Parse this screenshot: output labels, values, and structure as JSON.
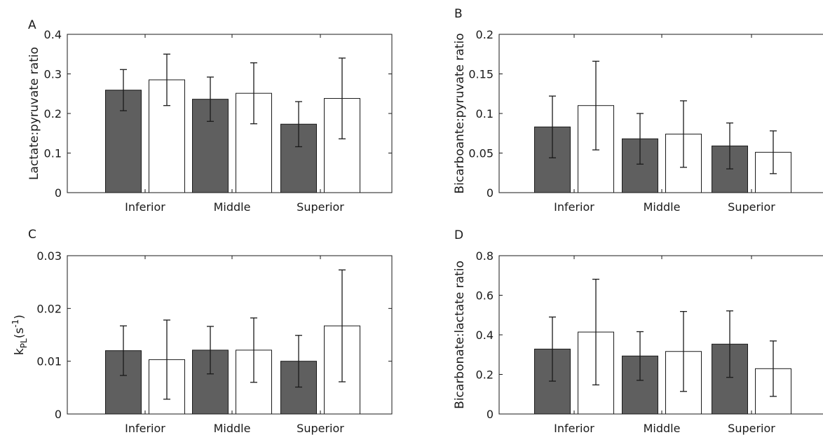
{
  "colors": {
    "group1": "#5f5f5f",
    "group2": "#ffffff",
    "stroke": "#1a1a1a"
  },
  "chart_data": [
    {
      "panel": "A",
      "type": "bar",
      "ylabel": "Lactate:pyruvate ratio",
      "ylim": [
        0,
        0.4
      ],
      "yticks": [
        "0",
        "0.1",
        "0.2",
        "0.3",
        "0.4"
      ],
      "categories": [
        "Inferior",
        "Middle",
        "Superior"
      ],
      "series": [
        {
          "values": [
            0.259,
            0.236,
            0.173
          ],
          "error": [
            0.052,
            0.056,
            0.057
          ]
        },
        {
          "values": [
            0.285,
            0.251,
            0.238
          ],
          "error": [
            0.065,
            0.077,
            0.102
          ]
        }
      ]
    },
    {
      "panel": "B",
      "type": "bar",
      "ylabel": "Bicarboante:pyruvate ratio",
      "ylim": [
        0,
        0.2
      ],
      "yticks": [
        "0",
        "0.05",
        "0.1",
        "0.15",
        "0.2"
      ],
      "categories": [
        "Inferior",
        "Middle",
        "Superior"
      ],
      "series": [
        {
          "values": [
            0.083,
            0.068,
            0.059
          ],
          "error": [
            0.039,
            0.032,
            0.029
          ]
        },
        {
          "values": [
            0.11,
            0.074,
            0.051
          ],
          "error": [
            0.056,
            0.042,
            0.027
          ]
        }
      ]
    },
    {
      "panel": "C",
      "type": "bar",
      "ylabel_main": "k",
      "ylabel_sub": "PL",
      "ylabel_rest": "(s",
      "ylabel_sup": "-1",
      "ylabel_close": ")",
      "ylim": [
        0,
        0.03
      ],
      "yticks": [
        "0",
        "0.01",
        "0.02",
        "0.03"
      ],
      "categories": [
        "Inferior",
        "Middle",
        "Superior"
      ],
      "series": [
        {
          "values": [
            0.012,
            0.0121,
            0.01
          ],
          "error": [
            0.0047,
            0.0045,
            0.0049
          ]
        },
        {
          "values": [
            0.0103,
            0.0121,
            0.0167
          ],
          "error": [
            0.0075,
            0.0061,
            0.0106
          ]
        }
      ]
    },
    {
      "panel": "D",
      "type": "bar",
      "ylabel": "Bicarbonate:lactate ratio",
      "ylim": [
        0,
        0.8
      ],
      "yticks": [
        "0",
        "0.2",
        "0.4",
        "0.6",
        "0.8"
      ],
      "categories": [
        "Inferior",
        "Middle",
        "Superior"
      ],
      "series": [
        {
          "values": [
            0.328,
            0.293,
            0.353
          ],
          "error": [
            0.162,
            0.123,
            0.168
          ]
        },
        {
          "values": [
            0.414,
            0.316,
            0.229
          ],
          "error": [
            0.267,
            0.202,
            0.14
          ]
        }
      ]
    }
  ]
}
